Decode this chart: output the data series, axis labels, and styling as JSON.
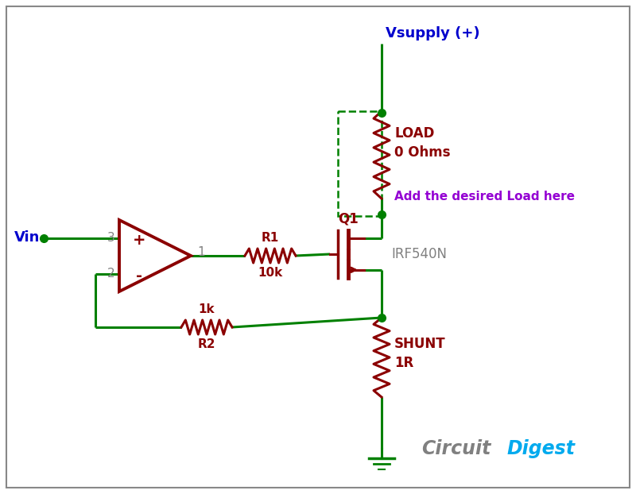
{
  "bg_color": "#ffffff",
  "border_color": "#888888",
  "wire_color": "#008000",
  "component_color": "#8B0000",
  "text_dark": "#808080",
  "text_blue": "#0000cd",
  "text_purple": "#9400d3",
  "vsupply_label": "Vsupply (+)",
  "vin_label": "Vin",
  "load_note": "Add the desired Load here",
  "q1_label": "Q1",
  "q1_part": "IRF540N",
  "r1_label": "R1",
  "r1_value": "10k",
  "r2_label": "R2",
  "r2_value": "1k",
  "cd_circuit": "Circuit",
  "cd_digest": "Digest",
  "op_plus": "+",
  "op_minus": "-",
  "op_in1": "3",
  "op_in2": "2",
  "op_out": "1",
  "fig_width": 8.0,
  "fig_height": 6.22
}
